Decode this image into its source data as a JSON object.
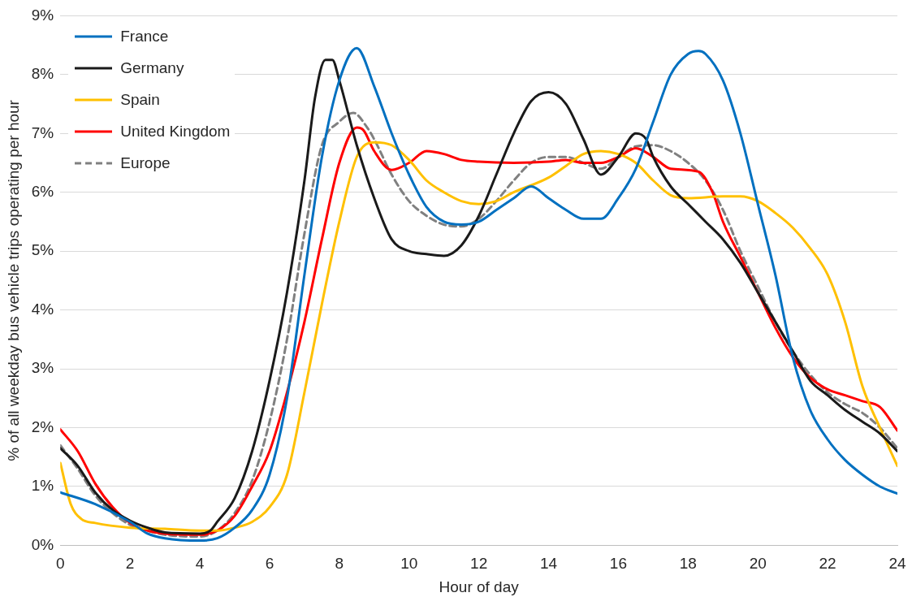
{
  "chart_data": {
    "type": "line",
    "xlabel": "Hour of day",
    "ylabel": "% of all weekday bus vehicle trips operating per hour",
    "xlim": [
      0,
      24
    ],
    "xticks": [
      0,
      2,
      4,
      6,
      8,
      10,
      12,
      14,
      16,
      18,
      20,
      22,
      24
    ],
    "ylim": [
      0,
      9
    ],
    "yticks": [
      {
        "value": 0,
        "label": "0%"
      },
      {
        "value": 1,
        "label": "1%"
      },
      {
        "value": 2,
        "label": "2%"
      },
      {
        "value": 3,
        "label": "3%"
      },
      {
        "value": 4,
        "label": "4%"
      },
      {
        "value": 5,
        "label": "5%"
      },
      {
        "value": 6,
        "label": "6%"
      },
      {
        "value": 7,
        "label": "7%"
      },
      {
        "value": 8,
        "label": "8%"
      },
      {
        "value": 9,
        "label": "9%"
      }
    ],
    "grid": "y",
    "legend": "top left",
    "series": [
      {
        "name": "France",
        "color": "#0070c0",
        "line_style": "solid",
        "x": [
          0,
          1,
          2,
          2.5,
          3,
          4,
          4.5,
          5,
          5.5,
          6,
          6.5,
          7,
          7.5,
          8,
          8.5,
          9,
          9.5,
          10,
          10.5,
          11,
          11.5,
          12,
          12.5,
          13,
          13.5,
          14,
          14.5,
          15,
          15.5,
          16,
          16.5,
          17,
          17.5,
          18,
          18.3,
          18.5,
          19,
          19.5,
          20,
          20.5,
          21,
          21.5,
          22,
          22.5,
          23,
          23.5,
          24
        ],
        "values": [
          0.9,
          0.7,
          0.4,
          0.2,
          0.12,
          0.08,
          0.12,
          0.3,
          0.6,
          1.2,
          2.5,
          4.6,
          6.6,
          7.9,
          8.45,
          7.8,
          7.0,
          6.3,
          5.75,
          5.5,
          5.45,
          5.5,
          5.7,
          5.9,
          6.1,
          5.9,
          5.7,
          5.55,
          5.55,
          5.9,
          6.4,
          7.2,
          8.0,
          8.35,
          8.4,
          8.35,
          7.9,
          7.0,
          5.8,
          4.6,
          3.2,
          2.3,
          1.8,
          1.45,
          1.2,
          1.0,
          0.88
        ]
      },
      {
        "name": "Germany",
        "color": "#1a1a1a",
        "line_style": "solid",
        "x": [
          0,
          0.5,
          1,
          1.5,
          2,
          2.5,
          3,
          4,
          4.3,
          4.5,
          5,
          5.5,
          6,
          6.5,
          7,
          7.3,
          7.6,
          7.8,
          8,
          8.5,
          9,
          9.5,
          10,
          10.5,
          11,
          11.5,
          12,
          12.5,
          13,
          13.5,
          14,
          14.5,
          15,
          15.5,
          16,
          16.5,
          16.8,
          17,
          17.5,
          18,
          18.5,
          19,
          19.5,
          20,
          20.5,
          21,
          21.5,
          22,
          22.5,
          23,
          23.5,
          24
        ],
        "values": [
          1.65,
          1.35,
          0.9,
          0.6,
          0.42,
          0.3,
          0.22,
          0.2,
          0.25,
          0.4,
          0.8,
          1.6,
          2.8,
          4.3,
          6.2,
          7.6,
          8.25,
          8.25,
          7.9,
          6.8,
          5.9,
          5.2,
          5.0,
          4.95,
          4.92,
          5.1,
          5.6,
          6.3,
          7.0,
          7.55,
          7.7,
          7.5,
          6.9,
          6.3,
          6.6,
          7.0,
          6.9,
          6.6,
          6.1,
          5.8,
          5.5,
          5.2,
          4.8,
          4.3,
          3.8,
          3.3,
          2.8,
          2.55,
          2.3,
          2.1,
          1.9,
          1.6
        ]
      },
      {
        "name": "Spain",
        "color": "#ffc000",
        "line_style": "solid",
        "x": [
          0,
          0.3,
          0.6,
          1,
          2,
          3,
          4,
          4.5,
          5,
          5.5,
          6,
          6.5,
          7,
          7.5,
          8,
          8.5,
          9,
          9.5,
          10,
          10.5,
          11,
          11.5,
          12,
          12.5,
          13,
          14,
          14.5,
          15,
          15.5,
          16,
          16.5,
          17,
          17.5,
          18,
          19,
          19.5,
          20,
          20.5,
          21,
          21.5,
          22,
          22.5,
          23,
          23.5,
          24
        ],
        "values": [
          1.4,
          0.7,
          0.45,
          0.38,
          0.3,
          0.28,
          0.25,
          0.25,
          0.3,
          0.4,
          0.65,
          1.2,
          2.6,
          4.1,
          5.5,
          6.6,
          6.85,
          6.8,
          6.55,
          6.2,
          6.0,
          5.85,
          5.8,
          5.85,
          6.0,
          6.25,
          6.45,
          6.65,
          6.7,
          6.65,
          6.5,
          6.2,
          5.95,
          5.9,
          5.93,
          5.93,
          5.85,
          5.65,
          5.4,
          5.05,
          4.6,
          3.8,
          2.7,
          2.0,
          1.35
        ]
      },
      {
        "name": "United Kingdom",
        "color": "#ff0000",
        "line_style": "solid",
        "x": [
          0,
          0.5,
          1,
          1.5,
          2,
          2.5,
          3,
          4,
          4.5,
          5,
          5.5,
          6,
          6.5,
          7,
          7.5,
          8,
          8.5,
          8.7,
          9,
          9.5,
          10,
          10.5,
          11,
          11.5,
          12,
          13,
          14,
          14.5,
          15,
          15.5,
          16,
          16.5,
          17,
          17.5,
          18.3,
          18.7,
          19,
          19.5,
          20,
          20.5,
          21,
          21.5,
          22,
          22.5,
          23,
          23.5,
          24
        ],
        "values": [
          1.97,
          1.6,
          1.05,
          0.65,
          0.38,
          0.25,
          0.2,
          0.18,
          0.25,
          0.5,
          1.0,
          1.6,
          2.6,
          3.8,
          5.2,
          6.5,
          7.1,
          7.05,
          6.7,
          6.38,
          6.5,
          6.7,
          6.65,
          6.55,
          6.52,
          6.5,
          6.52,
          6.55,
          6.5,
          6.5,
          6.6,
          6.75,
          6.6,
          6.4,
          6.35,
          6.0,
          5.5,
          4.9,
          4.3,
          3.7,
          3.2,
          2.85,
          2.65,
          2.55,
          2.45,
          2.35,
          1.95
        ]
      },
      {
        "name": "Europe",
        "color": "#808080",
        "line_style": "dashed",
        "x": [
          0,
          0.5,
          1,
          1.5,
          2,
          2.5,
          3,
          4,
          4.5,
          5,
          5.5,
          6,
          6.5,
          7,
          7.5,
          8,
          8.4,
          8.8,
          9,
          9.5,
          10,
          10.5,
          11,
          11.5,
          12,
          12.5,
          13,
          13.5,
          14,
          14.5,
          15,
          15.5,
          16,
          16.5,
          17,
          17.5,
          18,
          18.5,
          19,
          19.5,
          20,
          20.5,
          21,
          21.5,
          22,
          22.5,
          23,
          23.5,
          24
        ],
        "values": [
          1.7,
          1.3,
          0.85,
          0.55,
          0.35,
          0.25,
          0.18,
          0.15,
          0.25,
          0.55,
          1.1,
          2.1,
          3.5,
          5.3,
          6.8,
          7.2,
          7.35,
          7.1,
          6.9,
          6.3,
          5.85,
          5.6,
          5.45,
          5.42,
          5.55,
          5.85,
          6.2,
          6.5,
          6.6,
          6.6,
          6.5,
          6.4,
          6.6,
          6.78,
          6.8,
          6.7,
          6.5,
          6.2,
          5.7,
          5.0,
          4.4,
          3.8,
          3.3,
          2.9,
          2.6,
          2.4,
          2.25,
          2.0,
          1.65
        ]
      }
    ]
  }
}
